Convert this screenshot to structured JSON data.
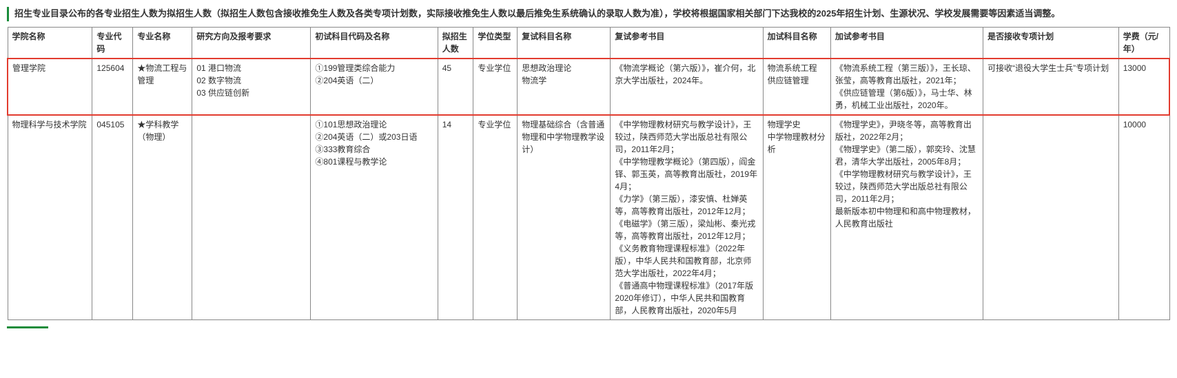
{
  "intro_text": "招生专业目录公布的各专业招生人数为拟招生人数（拟招生人数包含接收推免生人数及各类专项计划数，实际接收推免生人数以最后推免生系统确认的录取人数为准），学校将根据国家相关部门下达我校的2025年招生计划、生源状况、学校发展需要等因素适当调整。",
  "columns": [
    "学院名称",
    "专业代码",
    "专业名称",
    "研究方向及报考要求",
    "初试科目代码及名称",
    "拟招生人数",
    "学位类型",
    "复试科目名称",
    "复试参考书目",
    "加试科目名称",
    "加试参考书目",
    "是否接收专项计划",
    "学费（元/年）"
  ],
  "rows": [
    {
      "highlight": true,
      "cells": [
        "管理学院",
        "125604",
        "★物流工程与管理",
        "01 港口物流\n02 数字物流\n03 供应链创新",
        "①199管理类综合能力\n②204英语（二）",
        "45",
        "专业学位",
        "思想政治理论\n物流学",
        "《物流学概论（第六版）》，崔介何，北京大学出版社，2024年。",
        "物流系统工程\n供应链管理",
        "《物流系统工程（第三版）》，王长琼、张莹，高等教育出版社，2021年；\n《供应链管理（第6版）》，马士华、林勇，机械工业出版社，2020年。",
        "可接收“退役大学生士兵”专项计划",
        "13000"
      ]
    },
    {
      "highlight": false,
      "cells": [
        "物理科学与技术学院",
        "045105",
        "★学科教学（物理）",
        "",
        "①101思想政治理论\n②204英语（二）或203日语\n③333教育综合\n④801课程与教学论",
        "14",
        "专业学位",
        "物理基础综合（含普通物理和中学物理教学设计）",
        "《中学物理教材研究与教学设计》，王较过，陕西师范大学出版总社有限公司，2011年2月；\n《中学物理教学概论》（第四版），阎金铎、郭玉英，高等教育出版社，2019年4月；\n《力学》（第三版），漆安慎、杜婵英等，高等教育出版社，2012年12月；\n《电磁学》（第三版），梁灿彬、秦光戎等，高等教育出版社，2012年12月；\n《义务教育物理课程标准》（2022年版），中华人民共和国教育部，北京师范大学出版社，2022年4月；\n《普通高中物理课程标准》（2017年版2020年修订），中华人民共和国教育部，人民教育出版社，2020年5月",
        "物理学史\n中学物理教材分析",
        "《物理学史》，尹晓冬等，高等教育出版社，2022年2月；\n《物理学史》（第二版），郭奕玲、沈慧君，清华大学出版社，2005年8月；\n《中学物理教材研究与教学设计》，王较过，陕西师范大学出版总社有限公司，2011年2月；\n最新版本初中物理和和高中物理教材，人民教育出版社",
        "",
        "10000"
      ]
    }
  ]
}
